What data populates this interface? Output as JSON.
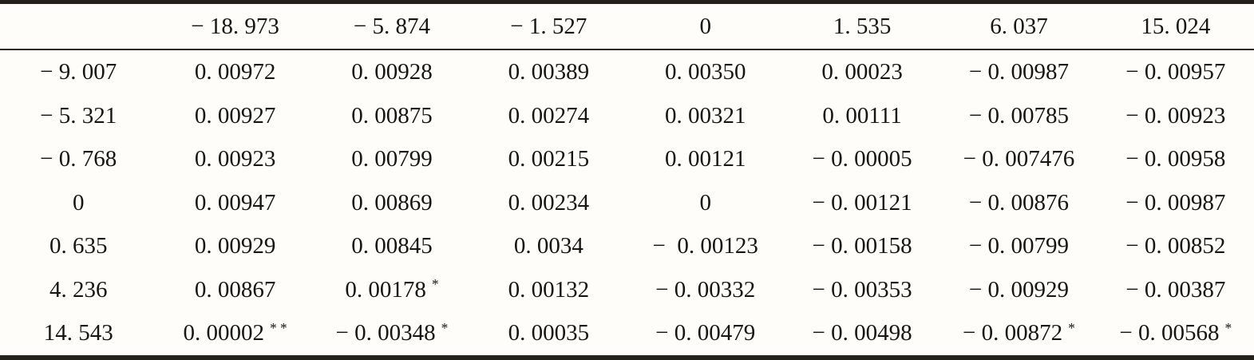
{
  "page": {
    "bg_color": "#fefdfa",
    "text_color": "#17150f",
    "rule_color": "#23211a"
  },
  "chart_data": {
    "type": "table",
    "title": "",
    "column_headers": [
      "",
      "− 18. 973",
      "− 5. 874",
      "− 1. 527",
      "0",
      "1. 535",
      "6. 037",
      "15. 024"
    ],
    "rows": [
      [
        {
          "v": "− 9. 007"
        },
        {
          "v": "0. 00972"
        },
        {
          "v": "0. 00928"
        },
        {
          "v": "0. 00389"
        },
        {
          "v": "0. 00350"
        },
        {
          "v": "0. 00023"
        },
        {
          "v": "− 0. 00987"
        },
        {
          "v": "− 0. 00957"
        }
      ],
      [
        {
          "v": "− 5. 321"
        },
        {
          "v": "0. 00927"
        },
        {
          "v": "0. 00875"
        },
        {
          "v": "0. 00274"
        },
        {
          "v": "0. 00321"
        },
        {
          "v": "0. 00111"
        },
        {
          "v": "− 0. 00785"
        },
        {
          "v": "− 0. 00923"
        }
      ],
      [
        {
          "v": "− 0. 768"
        },
        {
          "v": "0. 00923"
        },
        {
          "v": "0. 00799"
        },
        {
          "v": "0. 00215"
        },
        {
          "v": "0. 00121"
        },
        {
          "v": "− 0. 00005"
        },
        {
          "v": "− 0. 007476"
        },
        {
          "v": "− 0. 00958"
        }
      ],
      [
        {
          "v": "0"
        },
        {
          "v": "0. 00947"
        },
        {
          "v": "0. 00869"
        },
        {
          "v": "0. 00234"
        },
        {
          "v": "0"
        },
        {
          "v": "− 0. 00121"
        },
        {
          "v": "− 0. 00876"
        },
        {
          "v": "− 0. 00987"
        }
      ],
      [
        {
          "v": "0. 635"
        },
        {
          "v": "0. 00929"
        },
        {
          "v": "0. 00845"
        },
        {
          "v": "0. 0034"
        },
        {
          "v": "−  0. 00123"
        },
        {
          "v": "− 0. 00158"
        },
        {
          "v": "− 0. 00799"
        },
        {
          "v": "− 0. 00852"
        }
      ],
      [
        {
          "v": "4. 236"
        },
        {
          "v": "0. 00867"
        },
        {
          "v": "0. 00178",
          "sup": "*"
        },
        {
          "v": "0. 00132"
        },
        {
          "v": "− 0. 00332"
        },
        {
          "v": "− 0. 00353"
        },
        {
          "v": "− 0. 00929"
        },
        {
          "v": "− 0. 00387"
        }
      ],
      [
        {
          "v": "14. 543"
        },
        {
          "v": "0. 00002",
          "sup": "* *"
        },
        {
          "v": "− 0. 00348",
          "sup": "*"
        },
        {
          "v": "0. 00035"
        },
        {
          "v": "− 0. 00479"
        },
        {
          "v": "− 0. 00498"
        },
        {
          "v": "− 0. 00872",
          "sup": "*"
        },
        {
          "v": "− 0. 00568",
          "sup": "*"
        }
      ]
    ]
  }
}
